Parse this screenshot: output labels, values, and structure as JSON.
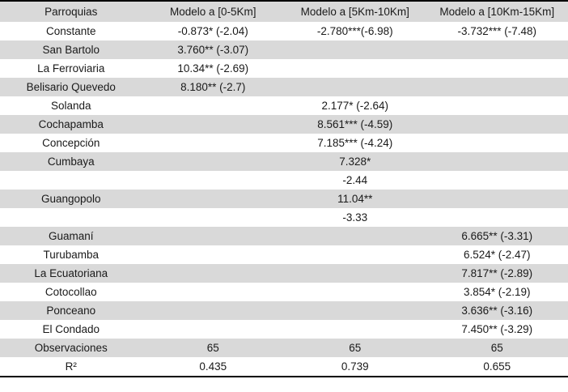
{
  "table": {
    "columns": [
      "Parroquias",
      "Modelo a [0-5Km]",
      "Modelo a [5Km-10Km]",
      "Modelo a [10Km-15Km]"
    ],
    "rows": [
      {
        "cells": [
          "Constante",
          "-0.873* (-2.04)",
          "-2.780***(-6.98)",
          "-3.732*** (-7.48)"
        ]
      },
      {
        "cells": [
          "San Bartolo",
          "3.760** (-3.07)",
          "",
          ""
        ]
      },
      {
        "cells": [
          "La Ferroviaria",
          "10.34** (-2.69)",
          "",
          ""
        ]
      },
      {
        "cells": [
          "Belisario Quevedo",
          "8.180** (-2.7)",
          "",
          ""
        ]
      },
      {
        "cells": [
          "Solanda",
          "",
          "2.177* (-2.64)",
          ""
        ]
      },
      {
        "cells": [
          "Cochapamba",
          "",
          "8.561*** (-4.59)",
          ""
        ]
      },
      {
        "cells": [
          "Concepción",
          "",
          "7.185*** (-4.24)",
          ""
        ]
      },
      {
        "cells": [
          "Cumbaya",
          "",
          "7.328*",
          ""
        ]
      },
      {
        "cells": [
          "",
          "",
          "-2.44",
          ""
        ]
      },
      {
        "cells": [
          "Guangopolo",
          "",
          "11.04**",
          ""
        ]
      },
      {
        "cells": [
          "",
          "",
          "-3.33",
          ""
        ]
      },
      {
        "cells": [
          "Guamaní",
          "",
          "",
          "6.665** (-3.31)"
        ]
      },
      {
        "cells": [
          "Turubamba",
          "",
          "",
          "6.524* (-2.47)"
        ]
      },
      {
        "cells": [
          "La Ecuatoriana",
          "",
          "",
          "7.817** (-2.89)"
        ]
      },
      {
        "cells": [
          "Cotocollao",
          "",
          "",
          "3.854* (-2.19)"
        ]
      },
      {
        "cells": [
          "Ponceano",
          "",
          "",
          "3.636** (-3.16)"
        ]
      },
      {
        "cells": [
          "El Condado",
          "",
          "",
          "7.450** (-3.29)"
        ]
      },
      {
        "cells": [
          "Observaciones",
          "65",
          "65",
          "65"
        ]
      },
      {
        "cells": [
          "R²",
          "0.435",
          "0.739",
          "0.655"
        ]
      }
    ]
  },
  "colors": {
    "header_bg": "#d9d9d9",
    "stripe_bg": "#d9d9d9",
    "row_bg": "#ffffff",
    "border": "#000000",
    "text": "#1a1a1a"
  }
}
